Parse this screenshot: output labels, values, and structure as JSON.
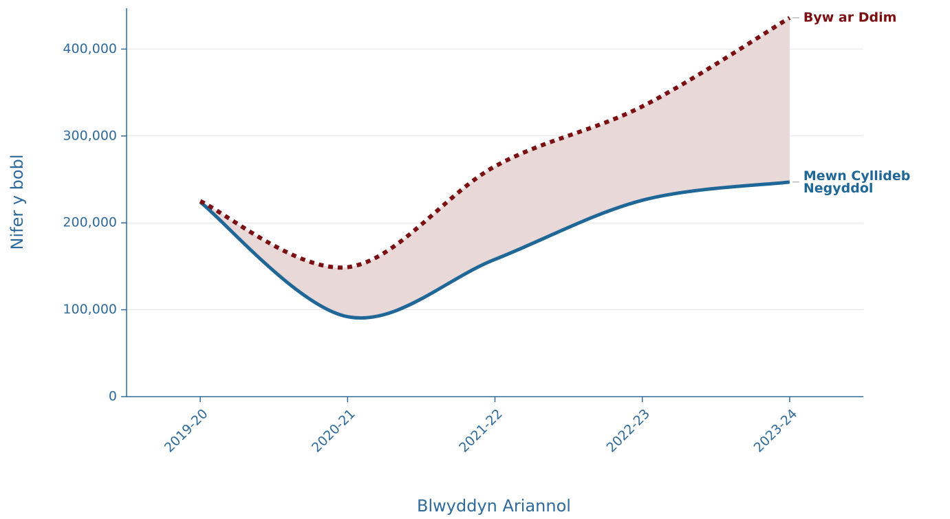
{
  "chart_data": {
    "type": "line",
    "x_label": "Blwyddyn Ariannol",
    "y_label": "Nifer y bobl",
    "categories": [
      "2019-20",
      "2020-21",
      "2021-22",
      "2022-23",
      "2023-24"
    ],
    "series": [
      {
        "name": "Byw ar Ddim",
        "color": "#7b0f12",
        "dashed": true,
        "values": [
          225000,
          149000,
          265000,
          334000,
          436000
        ]
      },
      {
        "name": "Mewn Cyllideb Negyddol",
        "color": "#1f6797",
        "dashed": false,
        "values": [
          224000,
          92000,
          158000,
          226000,
          247000
        ]
      }
    ],
    "fill_between_color": "#e8d8d8",
    "ylim": [
      0,
      447000
    ],
    "yticks": [
      0,
      {
        "value": 100000,
        "label": "100,000"
      },
      {
        "value": 200000,
        "label": "200,000"
      },
      {
        "value": 300000,
        "label": "300,000"
      },
      {
        "value": 400000,
        "label": "400,000"
      }
    ],
    "grid": true
  }
}
